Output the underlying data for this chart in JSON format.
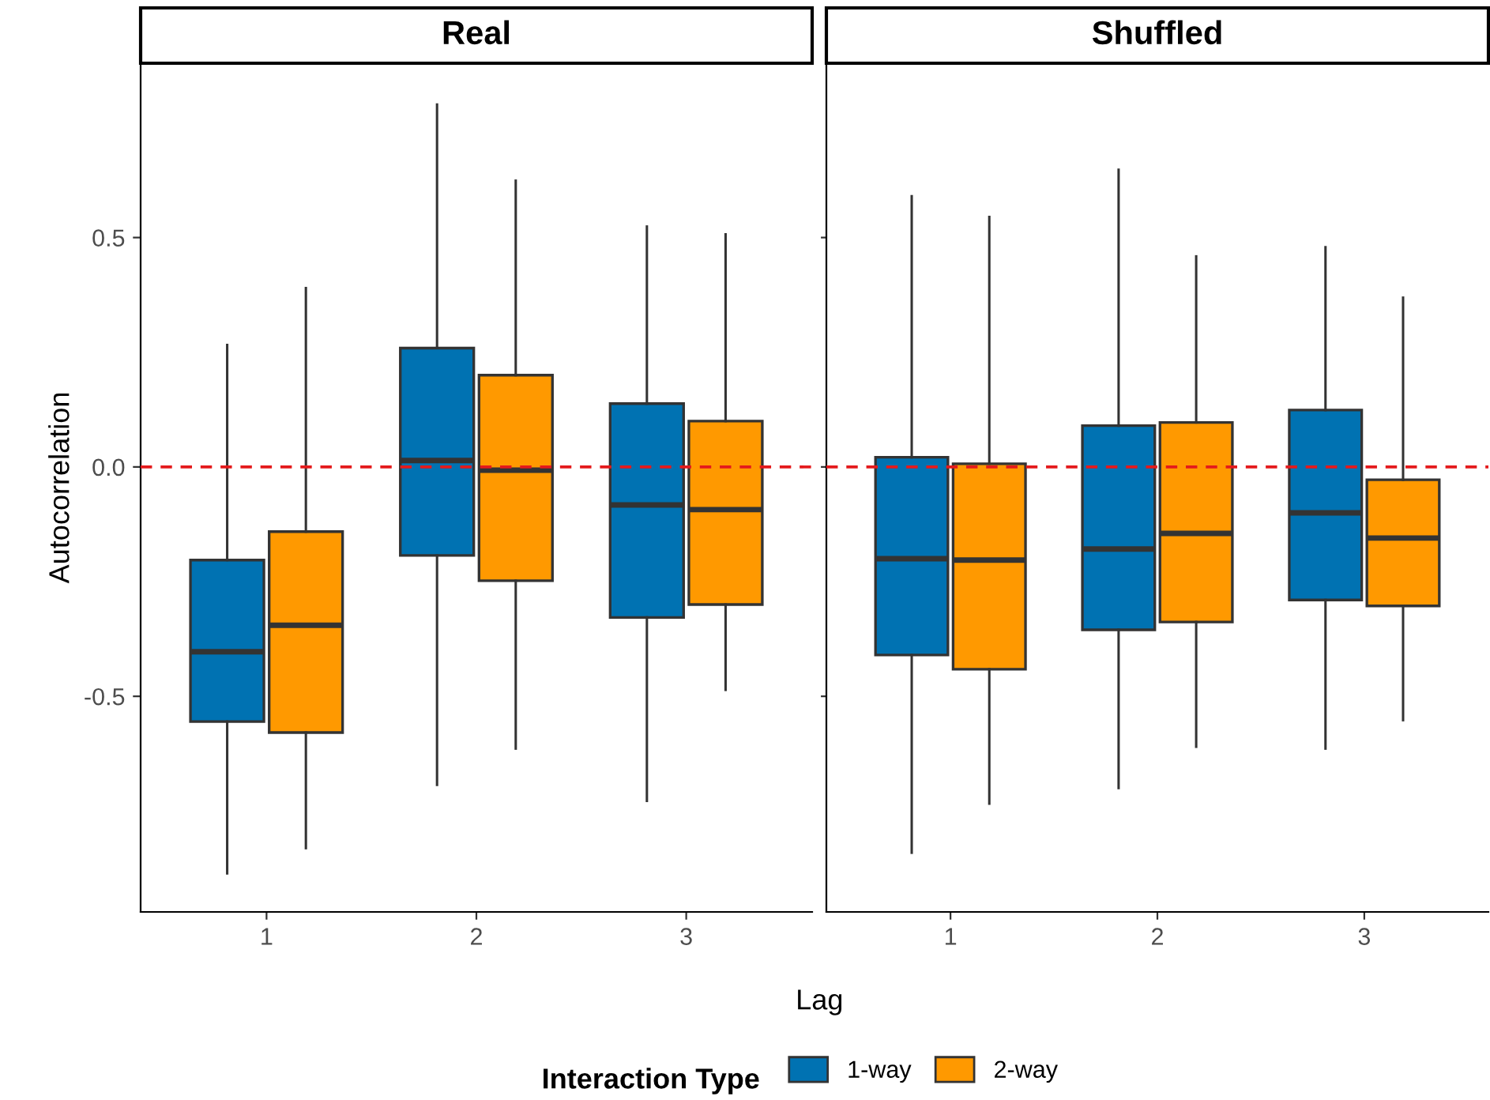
{
  "chart_data": [
    {
      "type": "box",
      "title": "Real",
      "xlabel": "Lag",
      "ylabel": "Autocorrelation",
      "legend_title": "Interaction Type",
      "legend": "bottom",
      "grid": false,
      "categories": [
        "1",
        "2",
        "3"
      ],
      "ylim": [
        -0.97,
        0.88
      ],
      "yticks": [
        {
          "value": -0.5,
          "label": "-0.5"
        },
        {
          "value": 0,
          "label": "0.0"
        },
        {
          "value": 0.5,
          "label": "0.5"
        }
      ],
      "ref_lines": [
        {
          "axis": "y",
          "value": 0,
          "color": "#e41a1c",
          "line_style": "dashed"
        }
      ],
      "series": [
        {
          "name": "1-way",
          "color": "#0072b2",
          "boxes": [
            {
              "low": -0.886,
              "q1": -0.555,
              "median": -0.403,
              "q3": -0.203,
              "high": 0.266
            },
            {
              "low": -0.693,
              "q1": -0.193,
              "median": 0.014,
              "q3": 0.259,
              "high": 0.79
            },
            {
              "low": -0.728,
              "q1": -0.328,
              "median": -0.083,
              "q3": 0.138,
              "high": 0.524
            }
          ]
        },
        {
          "name": "2-way",
          "color": "#ff9900",
          "boxes": [
            {
              "low": -0.831,
              "q1": -0.579,
              "median": -0.345,
              "q3": -0.141,
              "high": 0.39
            },
            {
              "low": -0.614,
              "q1": -0.248,
              "median": -0.007,
              "q3": 0.2,
              "high": 0.624
            },
            {
              "low": -0.486,
              "q1": -0.3,
              "median": -0.093,
              "q3": 0.1,
              "high": 0.507
            }
          ]
        }
      ]
    },
    {
      "type": "box",
      "title": "Shuffled",
      "grid": false,
      "tick_labels": "x",
      "categories": [
        "1",
        "2",
        "3"
      ],
      "ylim": [
        -0.97,
        0.88
      ],
      "yticks": [
        {
          "value": -0.5,
          "label": null
        },
        {
          "value": 0,
          "label": null
        },
        {
          "value": 0.5,
          "label": null
        }
      ],
      "ref_lines": [
        {
          "axis": "y",
          "value": 0,
          "color": "#e41a1c",
          "line_style": "dashed"
        }
      ],
      "series": [
        {
          "color": "#0072b2",
          "boxes": [
            {
              "low": -0.841,
              "q1": -0.41,
              "median": -0.2,
              "q3": 0.021,
              "high": 0.59
            },
            {
              "low": -0.7,
              "q1": -0.355,
              "median": -0.179,
              "q3": 0.09,
              "high": 0.648
            },
            {
              "low": -0.614,
              "q1": -0.29,
              "median": -0.1,
              "q3": 0.124,
              "high": 0.479
            }
          ]
        },
        {
          "color": "#ff9900",
          "boxes": [
            {
              "low": -0.734,
              "q1": -0.441,
              "median": -0.203,
              "q3": 0.007,
              "high": 0.545
            },
            {
              "low": -0.61,
              "q1": -0.338,
              "median": -0.145,
              "q3": 0.097,
              "high": 0.459
            },
            {
              "low": -0.552,
              "q1": -0.303,
              "median": -0.155,
              "q3": -0.028,
              "high": 0.369
            }
          ]
        }
      ]
    }
  ]
}
